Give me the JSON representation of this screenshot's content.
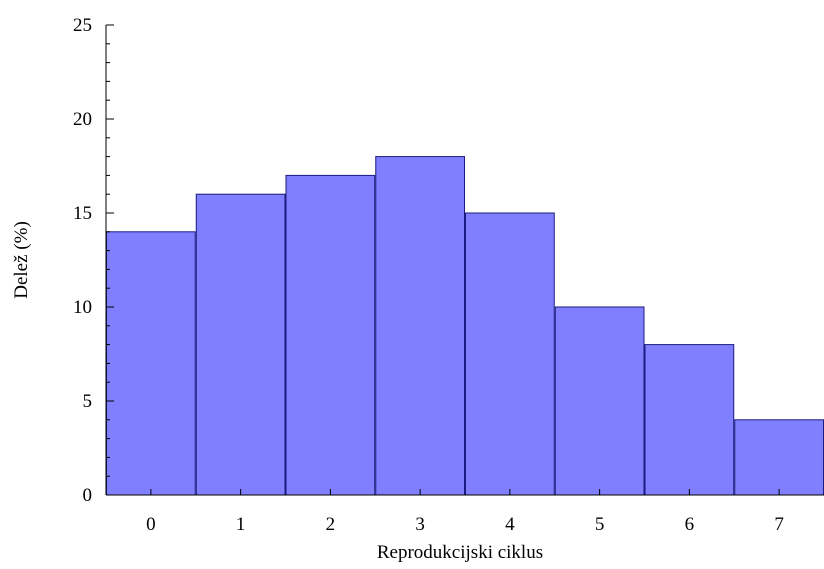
{
  "chart_data": {
    "type": "bar",
    "categories": [
      "0",
      "1",
      "2",
      "3",
      "4",
      "5",
      "6",
      "7"
    ],
    "values": [
      14,
      16,
      17,
      18,
      15,
      10,
      8,
      4
    ],
    "title": "",
    "xlabel": "Reprodukcijski ciklus",
    "ylabel": "Delež (%)",
    "ylim": [
      0,
      25
    ],
    "yticks": [
      "0",
      "5",
      "10",
      "15",
      "20",
      "25"
    ],
    "bar_color": "#8080ff",
    "bar_edge_color": "#1a1a80",
    "grid": false,
    "legend": "none"
  }
}
